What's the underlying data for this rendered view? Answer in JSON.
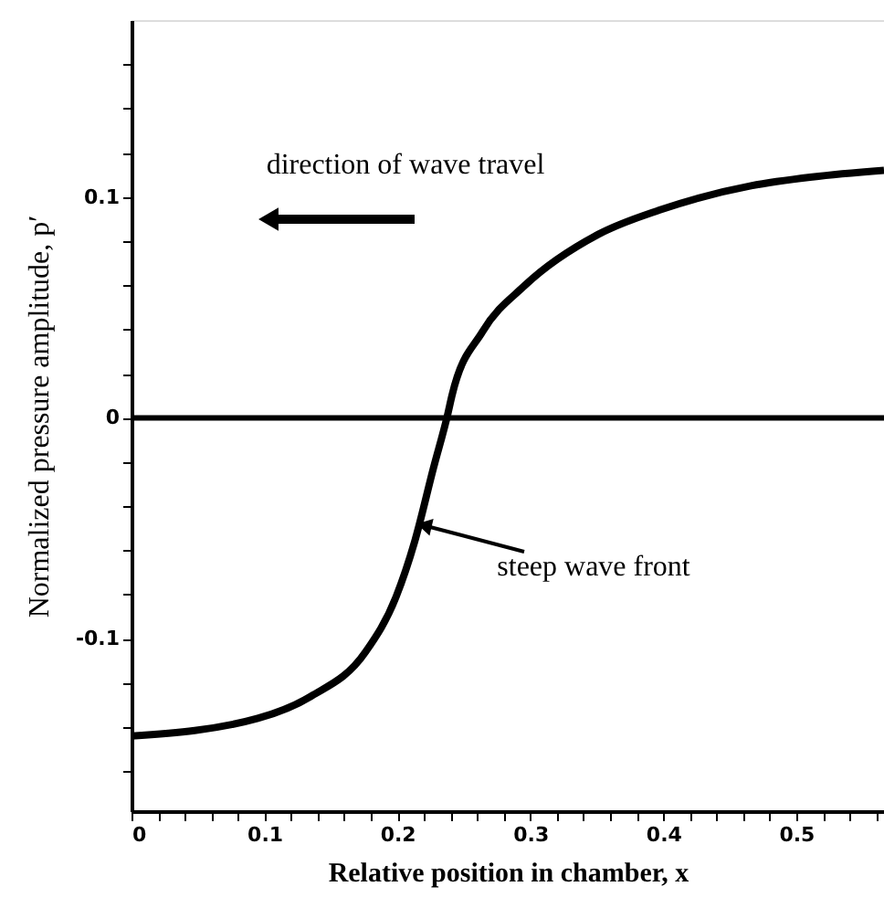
{
  "chart_data": {
    "type": "line",
    "xlabel": "Relative position in chamber, x",
    "ylabel": "Normalized pressure amplitude, p′",
    "x": [
      0,
      0.095,
      0.135,
      0.176,
      0.199,
      0.213,
      0.227,
      0.238,
      0.241,
      0.264,
      0.296,
      0.351,
      0.397,
      0.466,
      0.512,
      0.566
    ],
    "series": [
      {
        "color": "#000000",
        "values": [
          -0.144,
          -0.136,
          -0.126,
          -0.106,
          -0.081,
          -0.056,
          -0.023,
          0.002,
          0.01,
          0.039,
          0.06,
          0.083,
          0.094,
          0.105,
          0.109,
          0.112
        ]
      }
    ],
    "xlim": [
      0,
      0.566
    ],
    "ylim": [
      -0.178,
      0.18
    ],
    "xticks": [
      0,
      {
        "value": 0.02,
        "label": null
      },
      {
        "value": 0.04,
        "label": null
      },
      {
        "value": 0.06,
        "label": null
      },
      {
        "value": 0.08,
        "label": null
      },
      0.1,
      {
        "value": 0.12,
        "label": null
      },
      {
        "value": 0.14,
        "label": null
      },
      {
        "value": 0.16,
        "label": null
      },
      {
        "value": 0.18,
        "label": null
      },
      0.2,
      {
        "value": 0.22,
        "label": null
      },
      {
        "value": 0.24,
        "label": null
      },
      {
        "value": 0.26,
        "label": null
      },
      {
        "value": 0.28,
        "label": null
      },
      0.3,
      {
        "value": 0.32,
        "label": null
      },
      {
        "value": 0.34,
        "label": null
      },
      {
        "value": 0.36,
        "label": null
      },
      {
        "value": 0.38,
        "label": null
      },
      0.4,
      {
        "value": 0.42,
        "label": null
      },
      {
        "value": 0.44,
        "label": null
      },
      {
        "value": 0.46,
        "label": null
      },
      {
        "value": 0.48,
        "label": null
      },
      0.5,
      {
        "value": 0.52,
        "label": null
      },
      {
        "value": 0.54,
        "label": null
      },
      {
        "value": 0.56,
        "label": null
      }
    ],
    "yticks": [
      {
        "value": -0.16,
        "label": null
      },
      {
        "value": -0.14,
        "label": null
      },
      {
        "value": -0.12,
        "label": null
      },
      -0.1,
      {
        "value": -0.08,
        "label": null
      },
      {
        "value": -0.06,
        "label": null
      },
      {
        "value": -0.04,
        "label": null
      },
      {
        "value": -0.02,
        "label": null
      },
      0,
      {
        "value": 0.02,
        "label": null
      },
      {
        "value": 0.04,
        "label": null
      },
      {
        "value": 0.06,
        "label": null
      },
      {
        "value": 0.08,
        "label": null
      },
      0.1,
      {
        "value": 0.12,
        "label": null
      },
      {
        "value": 0.14,
        "label": null
      },
      {
        "value": 0.16,
        "label": null
      }
    ],
    "ref_lines": [
      {
        "axis": "y",
        "value": 0,
        "color": "#000000"
      }
    ],
    "annotations": [
      "direction of wave travel",
      {
        "text": "steep wave front",
        "x": 0.222,
        "y": -0.049
      }
    ],
    "grid": false,
    "marker": "none",
    "line_style": "solid"
  }
}
